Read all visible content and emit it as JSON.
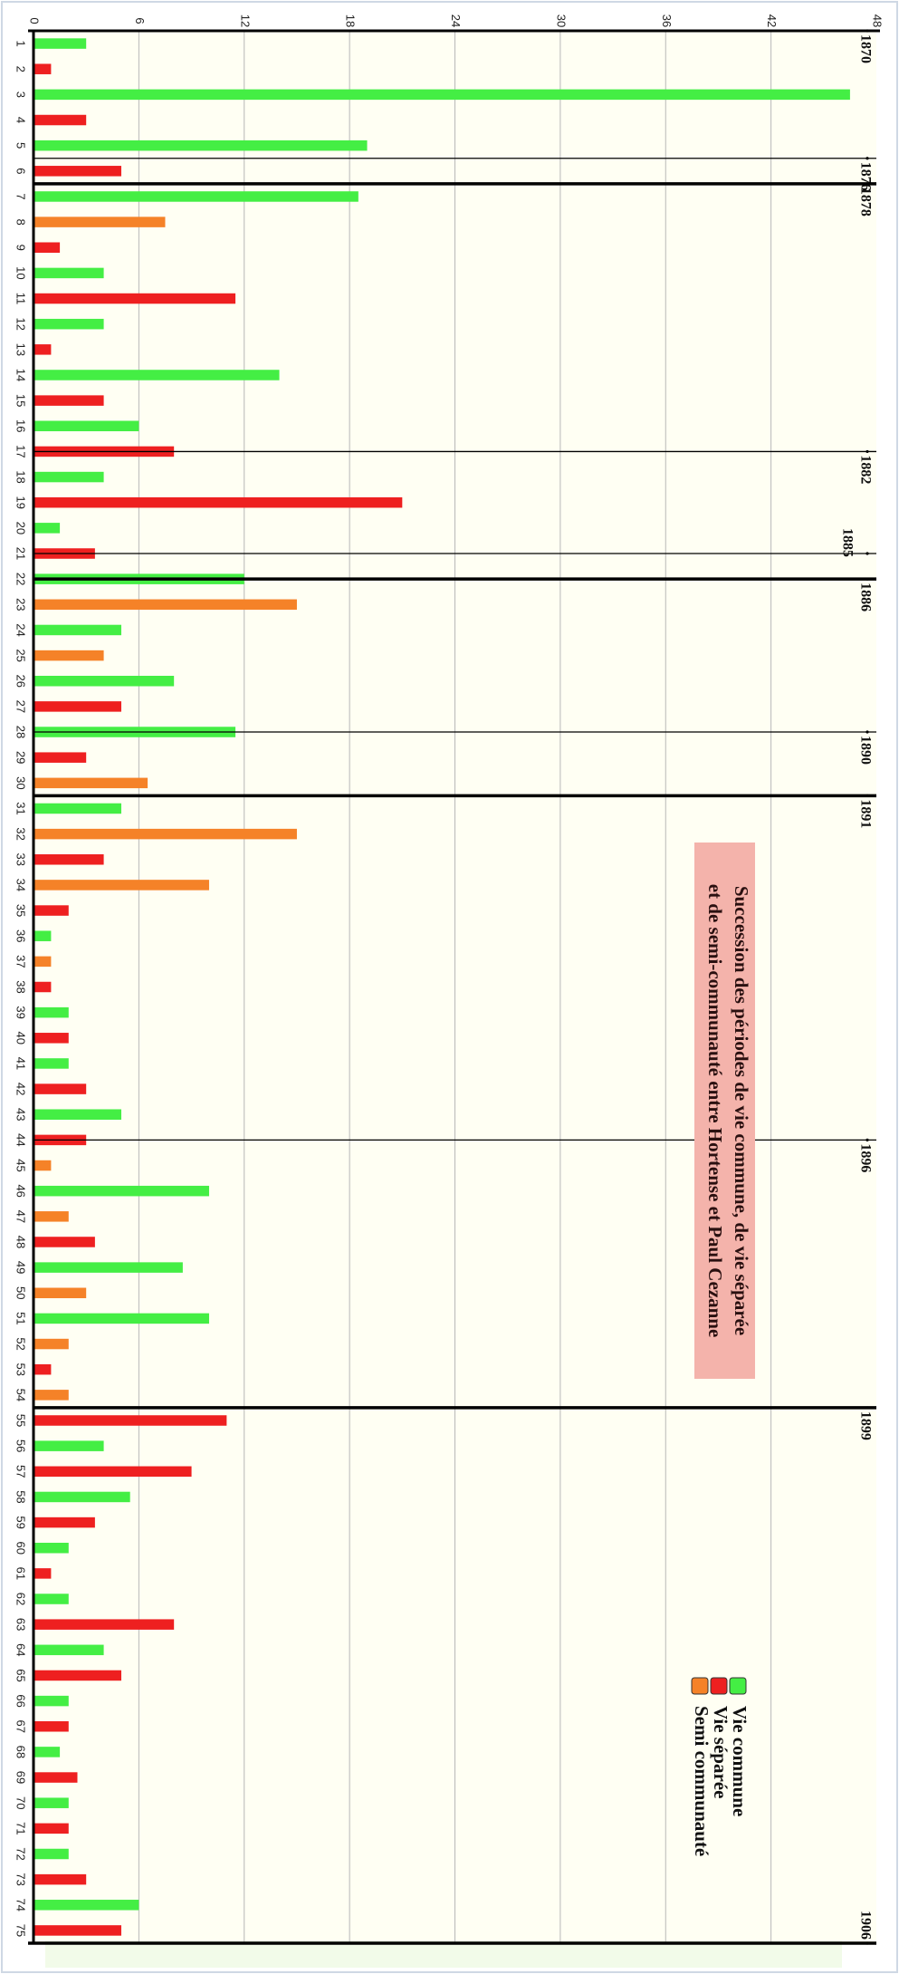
{
  "chart_data": {
    "type": "bar",
    "orientation": "rotated-90-clockwise",
    "title": "Succession des périodes de vie commune, de vie séparée et  de semi-communauté entre Hortense et Paul Cezanne",
    "xlabel": "",
    "ylabel": "",
    "ylim": [
      0,
      48
    ],
    "yticks": [
      0,
      6,
      12,
      18,
      24,
      30,
      36,
      42,
      48
    ],
    "grid": true,
    "legend_placement": "bottom-left of rotated view",
    "categories": [
      "1",
      "2",
      "3",
      "4",
      "5",
      "6",
      "7",
      "8",
      "9",
      "10",
      "11",
      "12",
      "13",
      "14",
      "15",
      "16",
      "17",
      "18",
      "19",
      "20",
      "21",
      "22",
      "23",
      "24",
      "25",
      "26",
      "27",
      "28",
      "29",
      "30",
      "31",
      "32",
      "33",
      "34",
      "35",
      "36",
      "37",
      "38",
      "39",
      "40",
      "41",
      "42",
      "43",
      "44",
      "45",
      "46",
      "47",
      "48",
      "49",
      "50",
      "51",
      "52",
      "53",
      "54",
      "55",
      "56",
      "57",
      "58",
      "59",
      "60",
      "61",
      "62",
      "63",
      "64",
      "65",
      "66",
      "67",
      "68",
      "69",
      "70",
      "71",
      "72",
      "73",
      "74",
      "75"
    ],
    "values": [
      3,
      1,
      46.5,
      3,
      19,
      5,
      18.5,
      7.5,
      1.5,
      4,
      11.5,
      4,
      1,
      14,
      4,
      6,
      8,
      4,
      21,
      1.5,
      3.5,
      12,
      15,
      5,
      4,
      8,
      5,
      11.5,
      3,
      6.5,
      5,
      15,
      4,
      10,
      2,
      1,
      1,
      1,
      2,
      2,
      2,
      3,
      5,
      3,
      1,
      10,
      2,
      3.5,
      8.5,
      3,
      10,
      2,
      1,
      2,
      11,
      4,
      9,
      5.5,
      3.5,
      2,
      1,
      2,
      8,
      4,
      5,
      2,
      2,
      1.5,
      2.5,
      2,
      2,
      2,
      3,
      6,
      5
    ],
    "kinds": [
      "c",
      "s",
      "c",
      "s",
      "c",
      "s",
      "c",
      "m",
      "s",
      "c",
      "s",
      "c",
      "s",
      "c",
      "s",
      "c",
      "s",
      "c",
      "s",
      "c",
      "s",
      "c",
      "m",
      "c",
      "m",
      "c",
      "s",
      "c",
      "s",
      "m",
      "c",
      "m",
      "s",
      "m",
      "s",
      "c",
      "m",
      "s",
      "c",
      "s",
      "c",
      "s",
      "c",
      "s",
      "m",
      "c",
      "m",
      "s",
      "c",
      "m",
      "c",
      "m",
      "s",
      "m",
      "s",
      "c",
      "s",
      "c",
      "s",
      "c",
      "s",
      "c",
      "s",
      "c",
      "s",
      "c",
      "s",
      "c",
      "s",
      "c",
      "s",
      "c",
      "s",
      "c",
      "s"
    ],
    "series": [
      {
        "key": "c",
        "name": "Vie commune",
        "color": "#44ee44"
      },
      {
        "key": "s",
        "name": "Vie séparée",
        "color": "#ee2020"
      },
      {
        "key": "m",
        "name": "Semi communauté",
        "color": "#f58228"
      }
    ],
    "year_markers": [
      {
        "year": "1870",
        "after": 0,
        "thick": true
      },
      {
        "year": "1876",
        "after": 5,
        "thick": false
      },
      {
        "year": "1878",
        "after": 6,
        "thick": true
      },
      {
        "year": "1882",
        "after": 16.5,
        "thick": false
      },
      {
        "year": "1885",
        "after": 20.5,
        "thick": false
      },
      {
        "year": "1886",
        "after": 21.5,
        "thick": true
      },
      {
        "year": "1890",
        "after": 27.5,
        "thick": false
      },
      {
        "year": "1891",
        "after": 30,
        "thick": true
      },
      {
        "year": "1896",
        "after": 43.5,
        "thick": false
      },
      {
        "year": "1899",
        "after": 54,
        "thick": true
      },
      {
        "year": "1906",
        "after": 75,
        "thick": true
      }
    ]
  },
  "title": {
    "line1": "Succession des périodes de vie commune, de vie séparée",
    "line2": "et  de semi-communauté entre Hortense et Paul Cezanne"
  },
  "legend": [
    {
      "label": "Vie commune",
      "color": "#44ee44"
    },
    {
      "label": "Vie séparée",
      "color": "#ee2020"
    },
    {
      "label": "Semi communauté",
      "color": "#f58228"
    }
  ],
  "colors": {
    "plot_bg": "#fffff3",
    "grid": "#b8b8b8",
    "title_box": "#f4b3ab",
    "axis": "#000000"
  }
}
